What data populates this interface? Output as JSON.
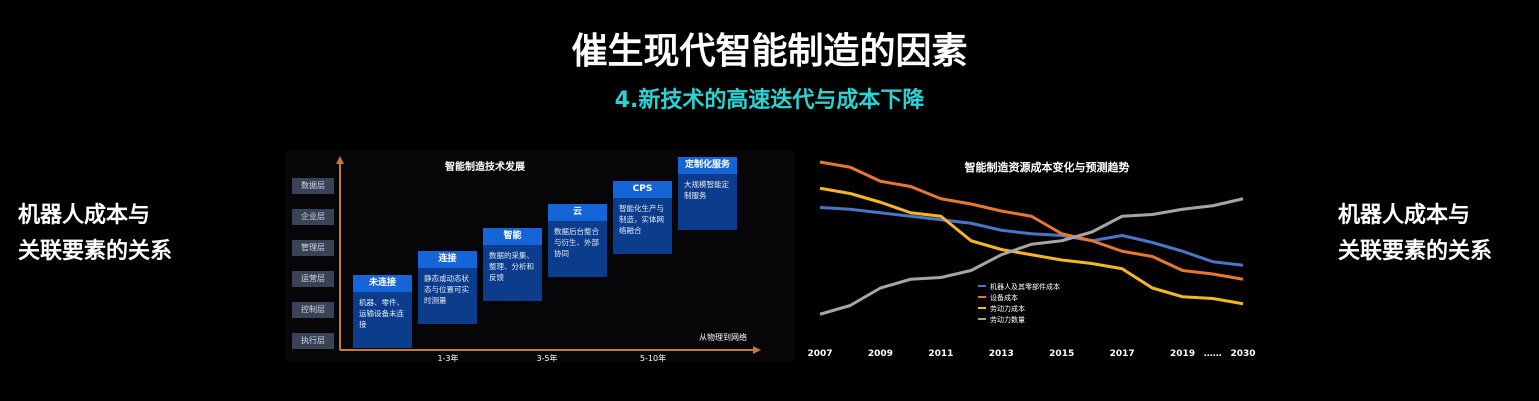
{
  "header": {
    "title": "催生现代智能制造的因素",
    "subtitle": "4.新技术的高速迭代与成本下降"
  },
  "side_left": {
    "lines": [
      "机器人成本与",
      "关联要素的关系"
    ]
  },
  "side_right": {
    "lines": [
      "机器人成本与",
      "关联要素的关系"
    ]
  },
  "diagram": {
    "title": "智能制造技术发展",
    "layers": [
      "数据层",
      "企业层",
      "管理层",
      "运营层",
      "控制层",
      "执行层"
    ],
    "steps": [
      {
        "label": "未连接",
        "text": "机器、零件、运输设备未连接"
      },
      {
        "label": "连接",
        "text": "静态或动态状态与位置可实时测量"
      },
      {
        "label": "智能",
        "text": "数据的采集、整理、分析和反馈"
      },
      {
        "label": "云",
        "text": "数据后台整合与衍生、外部协同"
      },
      {
        "label": "CPS",
        "text": "智能化生产与制造，实体网络融合"
      },
      {
        "label": "定制化服务",
        "text": "大规模智能定制服务"
      }
    ],
    "x_labels": [
      "1-3年",
      "3-5年",
      "5-10年"
    ],
    "arrow_label": "从物理到网络"
  },
  "chart_data": {
    "type": "line",
    "title": "智能制造资源成本变化与预测趋势",
    "categories": [
      "2007",
      null,
      "2009",
      null,
      "2011",
      null,
      "2013",
      null,
      "2015",
      null,
      "2017",
      null,
      "2019",
      "……",
      "2030"
    ],
    "ylim": [
      0,
      100
    ],
    "series": [
      {
        "name": "机器人及其零部件成本",
        "color": "#4a74c9",
        "values": [
          70,
          69,
          67,
          65,
          63,
          61,
          57,
          55,
          54,
          51,
          54,
          50,
          45,
          39,
          37
        ]
      },
      {
        "name": "设备成本",
        "color": "#e8772e",
        "values": [
          96,
          93,
          85,
          82,
          75,
          72,
          68,
          65,
          55,
          51,
          45,
          42,
          34,
          32,
          29
        ]
      },
      {
        "name": "劳动力成本",
        "color": "#f5b622",
        "values": [
          81,
          78,
          73,
          67,
          65,
          51,
          46,
          43,
          40,
          38,
          35,
          24,
          19,
          18,
          15
        ]
      },
      {
        "name": "劳动力数量",
        "color": "#a5a5a5",
        "values": [
          9,
          14,
          24,
          29,
          30,
          34,
          43,
          49,
          51,
          56,
          65,
          66,
          69,
          71,
          75
        ]
      }
    ]
  }
}
